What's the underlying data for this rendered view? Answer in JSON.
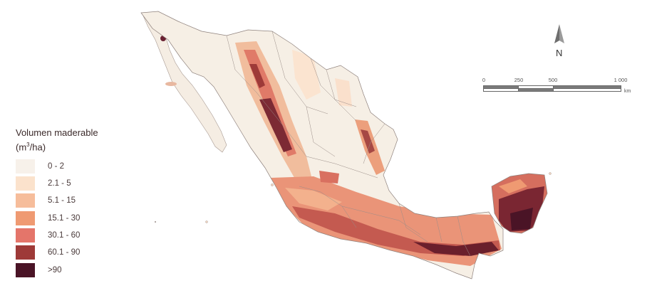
{
  "legend": {
    "title_main": "Volumen maderable",
    "title_unit_open": "(m",
    "title_unit_sup": "3",
    "title_unit_close": "/ha)",
    "classes": [
      {
        "label": "0 - 2",
        "color": "#f7f1ea"
      },
      {
        "label": "2.1 - 5",
        "color": "#fbe2cc"
      },
      {
        "label": "5.1 - 15",
        "color": "#f6bd9b"
      },
      {
        "label": "15.1 - 30",
        "color": "#ef9a72"
      },
      {
        "label": "30.1 - 60",
        "color": "#e4756a"
      },
      {
        "label": "60.1 - 90",
        "color": "#9e3a38"
      },
      {
        "label": ">90",
        "color": "#4a1426"
      }
    ]
  },
  "north_arrow": {
    "letter": "N"
  },
  "scale_bar": {
    "ticks": [
      "0",
      "250",
      "500",
      "1 000"
    ],
    "unit": "km"
  }
}
